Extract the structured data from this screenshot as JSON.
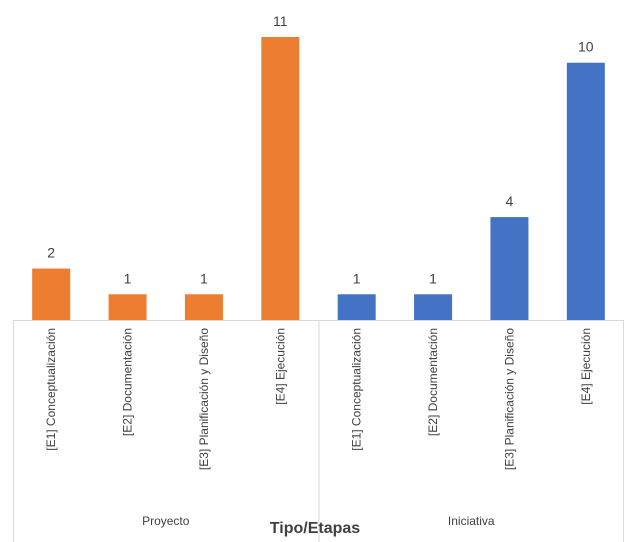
{
  "chart_data": {
    "type": "bar",
    "xlabel": "Tipo/Etapas",
    "ylabel": "",
    "ylim": [
      0,
      11
    ],
    "grid": false,
    "legend": "none",
    "groups": [
      {
        "name": "Proyecto",
        "color": "#ED7D31",
        "categories": [
          "[E1] Conceptualización",
          "[E2] Documentación",
          "[E3] Planificación y Diseño",
          "[E4] Ejecución"
        ],
        "values": [
          2,
          1,
          1,
          11
        ]
      },
      {
        "name": "Iniciativa",
        "color": "#4472C4",
        "categories": [
          "[E1] Conceptualización",
          "[E2] Documentación",
          "[E3] Planificación y Diseño",
          "[E4] Ejecución"
        ],
        "values": [
          1,
          1,
          4,
          10
        ]
      }
    ]
  }
}
